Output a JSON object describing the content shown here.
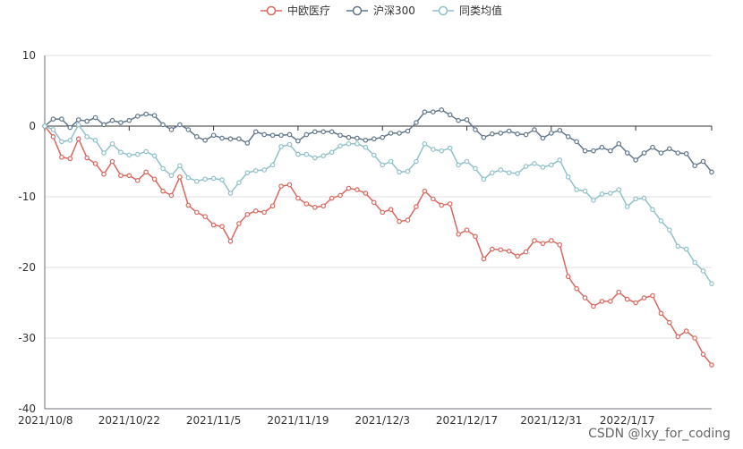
{
  "chart_data": {
    "type": "line",
    "legend": {
      "position": "top-center",
      "items": [
        "中欧医疗",
        "沪深300",
        "同类均值"
      ]
    },
    "ylim": [
      -40,
      10
    ],
    "yticks": [
      10,
      0,
      -10,
      -20,
      -30,
      -40
    ],
    "xticks": [
      {
        "i": 0,
        "label": "2021/10/8"
      },
      {
        "i": 10,
        "label": "2021/10/22"
      },
      {
        "i": 20,
        "label": "2021/11/5"
      },
      {
        "i": 30,
        "label": "2021/11/19"
      },
      {
        "i": 40,
        "label": "2021/12/3"
      },
      {
        "i": 50,
        "label": "2021/12/17"
      },
      {
        "i": 60,
        "label": "2021/12/31"
      },
      {
        "i": 69,
        "label": "2022/1/17"
      }
    ],
    "grid": "horizontal",
    "series": [
      {
        "name": "中欧医疗",
        "color": "#d9685f",
        "values": [
          0,
          -1.5,
          -4.4,
          -4.6,
          -1.8,
          -4.5,
          -5.3,
          -6.8,
          -5,
          -7,
          -7,
          -7.7,
          -6.5,
          -7.5,
          -9.2,
          -9.8,
          -7.2,
          -11.2,
          -12.2,
          -12.8,
          -14,
          -14.2,
          -16.3,
          -13.8,
          -12.5,
          -12,
          -12.2,
          -11.3,
          -8.5,
          -8.3,
          -10.2,
          -11,
          -11.5,
          -11.3,
          -10.2,
          -9.8,
          -8.8,
          -9,
          -9.5,
          -10.8,
          -12.2,
          -11.8,
          -13.5,
          -13.3,
          -11.4,
          -9.2,
          -10.3,
          -11.2,
          -11,
          -15.3,
          -14.7,
          -15.6,
          -18.8,
          -17.4,
          -17.5,
          -17.7,
          -18.4,
          -17.8,
          -16.2,
          -16.6,
          -16.2,
          -16.8,
          -21.3,
          -23,
          -24.3,
          -25.5,
          -24.8,
          -24.8,
          -23.5,
          -24.5,
          -25,
          -24.3,
          -24,
          -26.5,
          -27.8,
          -29.8,
          -29,
          -30,
          -32.3,
          -33.8
        ]
      },
      {
        "name": "沪深300",
        "color": "#62778c",
        "values": [
          0,
          1,
          1,
          -0.2,
          0.9,
          0.7,
          1.2,
          0.2,
          0.8,
          0.5,
          0.8,
          1.4,
          1.7,
          1.5,
          0.2,
          -0.5,
          0.2,
          -0.5,
          -1.5,
          -2,
          -1.3,
          -1.7,
          -1.8,
          -1.8,
          -2.4,
          -0.8,
          -1.2,
          -1.3,
          -1.3,
          -1.2,
          -2.1,
          -1.2,
          -0.8,
          -0.8,
          -0.8,
          -1.3,
          -1.6,
          -1.7,
          -2,
          -1.8,
          -1.6,
          -1,
          -1,
          -0.7,
          0.5,
          2,
          2,
          2.3,
          1.6,
          0.8,
          0.9,
          -0.5,
          -1.6,
          -1.1,
          -1,
          -0.7,
          -1.1,
          -1.2,
          -0.5,
          -1.7,
          -1,
          -0.6,
          -1.5,
          -2.2,
          -3.5,
          -3.5,
          -3,
          -3.5,
          -2.5,
          -3.8,
          -4.8,
          -3.8,
          -3,
          -3.8,
          -3.2,
          -3.8,
          -3.9,
          -5.6,
          -5,
          -6.5
        ]
      },
      {
        "name": "同类均值",
        "color": "#91c1c8",
        "values": [
          0,
          -0.5,
          -2.2,
          -2,
          0.2,
          -1.5,
          -2,
          -3.8,
          -2.5,
          -3.7,
          -4.1,
          -4,
          -3.6,
          -4.2,
          -6,
          -7,
          -5.6,
          -7.3,
          -7.8,
          -7.5,
          -7.4,
          -7.6,
          -9.5,
          -8,
          -6.6,
          -6.3,
          -6.2,
          -5.5,
          -2.9,
          -2.6,
          -4,
          -4,
          -4.5,
          -4.2,
          -3.7,
          -2.8,
          -2.5,
          -2.5,
          -3,
          -4.1,
          -5.5,
          -5,
          -6.5,
          -6.4,
          -5,
          -2.5,
          -3.3,
          -3.5,
          -3.1,
          -5.5,
          -5,
          -6,
          -7.5,
          -6.6,
          -6.2,
          -6.6,
          -6.7,
          -5.7,
          -5.3,
          -5.8,
          -5.5,
          -4.8,
          -7.2,
          -9,
          -9.2,
          -10.5,
          -9.6,
          -9.5,
          -9,
          -11.4,
          -10.3,
          -10.2,
          -11.8,
          -13.4,
          -14.7,
          -17,
          -17.4,
          -19.3,
          -20.5,
          -22.3
        ]
      }
    ]
  },
  "watermark": "CSDN @lxy_for_coding"
}
